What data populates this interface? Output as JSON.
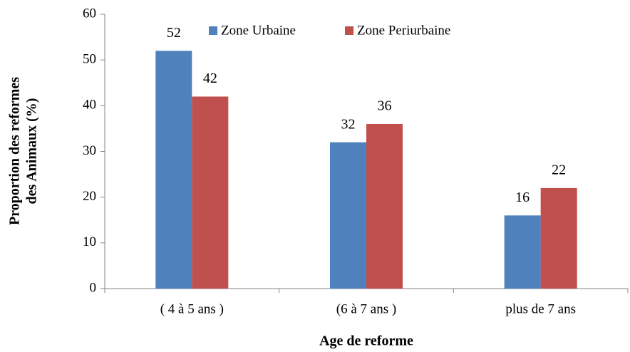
{
  "chart_data": {
    "type": "bar",
    "xlabel": "Age de reforme",
    "ylabel": [
      "Proportion des reformes",
      "des Animaux  (%)"
    ],
    "categories": [
      "( 4 à 5 ans )",
      "(6 à 7 ans )",
      "plus de 7 ans"
    ],
    "series": [
      {
        "name": "Zone Urbaine",
        "color": "#4f81bd",
        "values": [
          52,
          32,
          16
        ]
      },
      {
        "name": "Zone Periurbaine",
        "color": "#c0504d",
        "values": [
          42,
          36,
          22
        ]
      }
    ],
    "ylim": [
      0,
      60
    ],
    "yticks": [
      0,
      10,
      20,
      30,
      40,
      50,
      60
    ],
    "grid": false,
    "legend": "top"
  }
}
